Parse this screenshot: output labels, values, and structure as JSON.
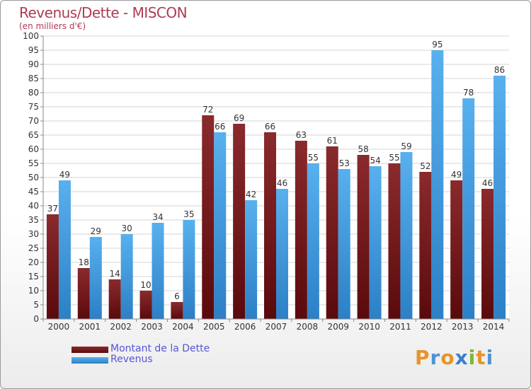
{
  "header": {
    "title": "Revenus/Dette - MISCON",
    "subtitle": "(en milliers d'€)"
  },
  "colors": {
    "dette": "#7a1f22",
    "revenus": "#4aa3e3",
    "title": "#b03a55",
    "legend_text": "#5656d8"
  },
  "chart_data": {
    "type": "bar",
    "title": "Revenus/Dette - MISCON",
    "subtitle": "(en milliers d'€)",
    "categories": [
      "2000",
      "2001",
      "2002",
      "2003",
      "2004",
      "2005",
      "2006",
      "2007",
      "2008",
      "2009",
      "2010",
      "2011",
      "2012",
      "2013",
      "2014"
    ],
    "series": [
      {
        "name": "Montant de la Dette",
        "values": [
          37,
          18,
          14,
          10,
          6,
          72,
          69,
          66,
          63,
          61,
          58,
          55,
          52,
          49,
          46
        ]
      },
      {
        "name": "Revenus",
        "values": [
          49,
          29,
          30,
          34,
          35,
          66,
          42,
          46,
          55,
          53,
          54,
          59,
          95,
          78,
          86
        ]
      }
    ],
    "ylim": [
      0,
      100
    ],
    "yticks": [
      0,
      5,
      10,
      15,
      20,
      25,
      30,
      35,
      40,
      45,
      50,
      55,
      60,
      65,
      70,
      75,
      80,
      85,
      90,
      95,
      100
    ],
    "grid": true,
    "legend_position": "bottom-left"
  },
  "legend": {
    "items": [
      "Montant de la Dette",
      "Revenus"
    ]
  },
  "logo": {
    "letters": [
      "P",
      "r",
      "o",
      "x",
      "i",
      "t",
      "i"
    ]
  }
}
